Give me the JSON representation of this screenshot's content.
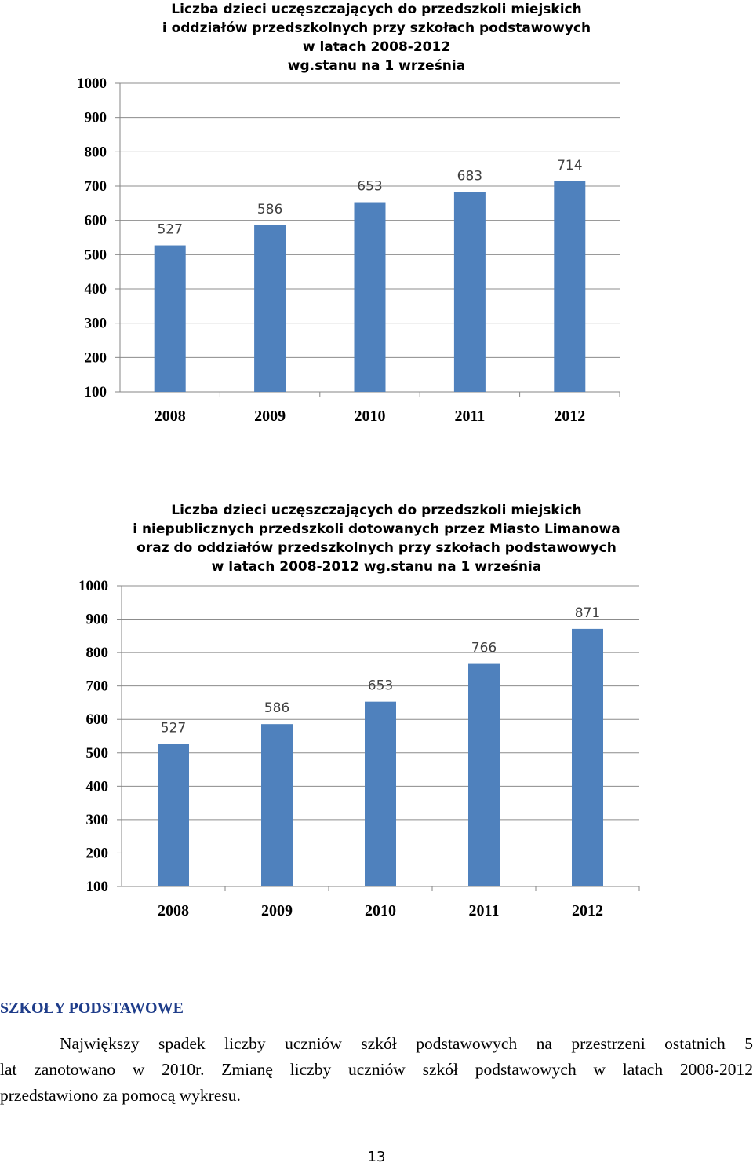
{
  "chart_data": [
    {
      "type": "bar",
      "title_lines": [
        "Liczba dzieci uczęszczających do przedszkoli miejskich",
        "i oddziałów przedszkolnych przy szkołach podstawowych",
        "w latach 2008-2012",
        "wg.stanu na 1 września"
      ],
      "categories": [
        "2008",
        "2009",
        "2010",
        "2011",
        "2012"
      ],
      "values": [
        527,
        586,
        653,
        683,
        714
      ],
      "ylim": [
        100,
        1000
      ],
      "yticks": [
        100,
        200,
        300,
        400,
        500,
        600,
        700,
        800,
        900,
        1000
      ],
      "grid": true,
      "bar_color": "#4f81bd"
    },
    {
      "type": "bar",
      "title_lines": [
        "Liczba dzieci uczęszczających do przedszkoli miejskich",
        "i niepublicznych przedszkoli dotowanych przez Miasto Limanowa",
        "oraz do oddziałów przedszkolnych przy szkołach podstawowych",
        "w latach 2008-2012 wg.stanu na 1 września"
      ],
      "categories": [
        "2008",
        "2009",
        "2010",
        "2011",
        "2012"
      ],
      "values": [
        527,
        586,
        653,
        766,
        871
      ],
      "ylim": [
        100,
        1000
      ],
      "yticks": [
        100,
        200,
        300,
        400,
        500,
        600,
        700,
        800,
        900,
        1000
      ],
      "grid": true,
      "bar_color": "#4f81bd"
    }
  ],
  "section": {
    "heading": "SZKOŁY PODSTAWOWE",
    "line1": "Największy spadek liczby uczniów szkół podstawowych    na przestrzeni ostatnich 5",
    "line2": "lat zanotowano w 2010r. Zmianę liczby uczniów szkół podstawowych w latach 2008-2012",
    "line3": "przedstawiono za pomocą wykresu."
  },
  "page_number": "13"
}
